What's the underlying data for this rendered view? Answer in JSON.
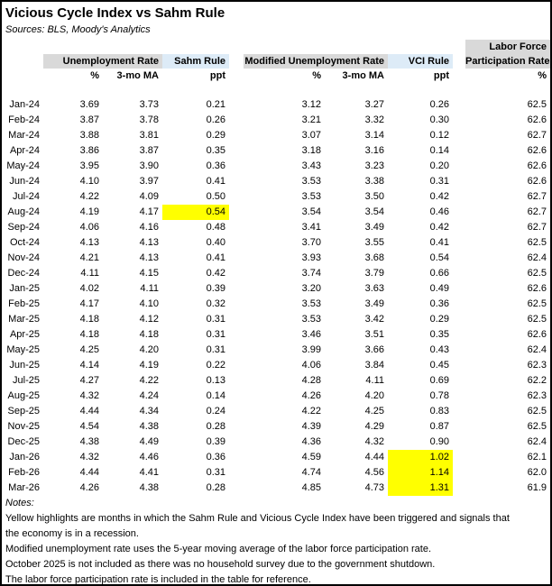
{
  "title": "Vicious Cycle Index vs Sahm Rule",
  "sources": "Sources: BLS, Moody's Analytics",
  "colors": {
    "header_gray": "#D9D9D9",
    "header_blue": "#DDEBF7",
    "highlight_yellow": "#FFFF00"
  },
  "table": {
    "group_headers": {
      "unemployment_rate": "Unemployment Rate",
      "sahm_rule": "Sahm Rule",
      "modified_unemployment_rate": "Modified Unemployment Rate",
      "vci_rule": "VCI Rule",
      "labor_force_line1": "Labor Force",
      "labor_force_line2": "Participation Rate"
    },
    "sub_headers": {
      "ur_pct": "%",
      "ur_ma": "3-mo MA",
      "sahm": "ppt",
      "mur_pct": "%",
      "mur_ma": "3-mo MA",
      "vci": "ppt",
      "lfpr": "%"
    },
    "rows": [
      {
        "month": "Jan-24",
        "ur_pct": "3.69",
        "ur_ma": "3.73",
        "sahm": "0.21",
        "mur_pct": "3.12",
        "mur_ma": "3.27",
        "vci": "0.26",
        "lfpr": "62.5",
        "sahm_hl": false,
        "vci_hl": false
      },
      {
        "month": "Feb-24",
        "ur_pct": "3.87",
        "ur_ma": "3.78",
        "sahm": "0.26",
        "mur_pct": "3.21",
        "mur_ma": "3.32",
        "vci": "0.30",
        "lfpr": "62.6",
        "sahm_hl": false,
        "vci_hl": false
      },
      {
        "month": "Mar-24",
        "ur_pct": "3.88",
        "ur_ma": "3.81",
        "sahm": "0.29",
        "mur_pct": "3.07",
        "mur_ma": "3.14",
        "vci": "0.12",
        "lfpr": "62.7",
        "sahm_hl": false,
        "vci_hl": false
      },
      {
        "month": "Apr-24",
        "ur_pct": "3.86",
        "ur_ma": "3.87",
        "sahm": "0.35",
        "mur_pct": "3.18",
        "mur_ma": "3.16",
        "vci": "0.14",
        "lfpr": "62.6",
        "sahm_hl": false,
        "vci_hl": false
      },
      {
        "month": "May-24",
        "ur_pct": "3.95",
        "ur_ma": "3.90",
        "sahm": "0.36",
        "mur_pct": "3.43",
        "mur_ma": "3.23",
        "vci": "0.20",
        "lfpr": "62.6",
        "sahm_hl": false,
        "vci_hl": false
      },
      {
        "month": "Jun-24",
        "ur_pct": "4.10",
        "ur_ma": "3.97",
        "sahm": "0.41",
        "mur_pct": "3.53",
        "mur_ma": "3.38",
        "vci": "0.31",
        "lfpr": "62.6",
        "sahm_hl": false,
        "vci_hl": false
      },
      {
        "month": "Jul-24",
        "ur_pct": "4.22",
        "ur_ma": "4.09",
        "sahm": "0.50",
        "mur_pct": "3.53",
        "mur_ma": "3.50",
        "vci": "0.42",
        "lfpr": "62.7",
        "sahm_hl": false,
        "vci_hl": false
      },
      {
        "month": "Aug-24",
        "ur_pct": "4.19",
        "ur_ma": "4.17",
        "sahm": "0.54",
        "mur_pct": "3.54",
        "mur_ma": "3.54",
        "vci": "0.46",
        "lfpr": "62.7",
        "sahm_hl": true,
        "vci_hl": false
      },
      {
        "month": "Sep-24",
        "ur_pct": "4.06",
        "ur_ma": "4.16",
        "sahm": "0.48",
        "mur_pct": "3.41",
        "mur_ma": "3.49",
        "vci": "0.42",
        "lfpr": "62.7",
        "sahm_hl": false,
        "vci_hl": false
      },
      {
        "month": "Oct-24",
        "ur_pct": "4.13",
        "ur_ma": "4.13",
        "sahm": "0.40",
        "mur_pct": "3.70",
        "mur_ma": "3.55",
        "vci": "0.41",
        "lfpr": "62.5",
        "sahm_hl": false,
        "vci_hl": false
      },
      {
        "month": "Nov-24",
        "ur_pct": "4.21",
        "ur_ma": "4.13",
        "sahm": "0.41",
        "mur_pct": "3.93",
        "mur_ma": "3.68",
        "vci": "0.54",
        "lfpr": "62.4",
        "sahm_hl": false,
        "vci_hl": false
      },
      {
        "month": "Dec-24",
        "ur_pct": "4.11",
        "ur_ma": "4.15",
        "sahm": "0.42",
        "mur_pct": "3.74",
        "mur_ma": "3.79",
        "vci": "0.66",
        "lfpr": "62.5",
        "sahm_hl": false,
        "vci_hl": false
      },
      {
        "month": "Jan-25",
        "ur_pct": "4.02",
        "ur_ma": "4.11",
        "sahm": "0.39",
        "mur_pct": "3.20",
        "mur_ma": "3.63",
        "vci": "0.49",
        "lfpr": "62.6",
        "sahm_hl": false,
        "vci_hl": false
      },
      {
        "month": "Feb-25",
        "ur_pct": "4.17",
        "ur_ma": "4.10",
        "sahm": "0.32",
        "mur_pct": "3.53",
        "mur_ma": "3.49",
        "vci": "0.36",
        "lfpr": "62.5",
        "sahm_hl": false,
        "vci_hl": false
      },
      {
        "month": "Mar-25",
        "ur_pct": "4.18",
        "ur_ma": "4.12",
        "sahm": "0.31",
        "mur_pct": "3.53",
        "mur_ma": "3.42",
        "vci": "0.29",
        "lfpr": "62.5",
        "sahm_hl": false,
        "vci_hl": false
      },
      {
        "month": "Apr-25",
        "ur_pct": "4.18",
        "ur_ma": "4.18",
        "sahm": "0.31",
        "mur_pct": "3.46",
        "mur_ma": "3.51",
        "vci": "0.35",
        "lfpr": "62.6",
        "sahm_hl": false,
        "vci_hl": false
      },
      {
        "month": "May-25",
        "ur_pct": "4.25",
        "ur_ma": "4.20",
        "sahm": "0.31",
        "mur_pct": "3.99",
        "mur_ma": "3.66",
        "vci": "0.43",
        "lfpr": "62.4",
        "sahm_hl": false,
        "vci_hl": false
      },
      {
        "month": "Jun-25",
        "ur_pct": "4.14",
        "ur_ma": "4.19",
        "sahm": "0.22",
        "mur_pct": "4.06",
        "mur_ma": "3.84",
        "vci": "0.45",
        "lfpr": "62.3",
        "sahm_hl": false,
        "vci_hl": false
      },
      {
        "month": "Jul-25",
        "ur_pct": "4.27",
        "ur_ma": "4.22",
        "sahm": "0.13",
        "mur_pct": "4.28",
        "mur_ma": "4.11",
        "vci": "0.69",
        "lfpr": "62.2",
        "sahm_hl": false,
        "vci_hl": false
      },
      {
        "month": "Aug-25",
        "ur_pct": "4.32",
        "ur_ma": "4.24",
        "sahm": "0.14",
        "mur_pct": "4.26",
        "mur_ma": "4.20",
        "vci": "0.78",
        "lfpr": "62.3",
        "sahm_hl": false,
        "vci_hl": false
      },
      {
        "month": "Sep-25",
        "ur_pct": "4.44",
        "ur_ma": "4.34",
        "sahm": "0.24",
        "mur_pct": "4.22",
        "mur_ma": "4.25",
        "vci": "0.83",
        "lfpr": "62.5",
        "sahm_hl": false,
        "vci_hl": false
      },
      {
        "month": "Nov-25",
        "ur_pct": "4.54",
        "ur_ma": "4.38",
        "sahm": "0.28",
        "mur_pct": "4.39",
        "mur_ma": "4.29",
        "vci": "0.87",
        "lfpr": "62.5",
        "sahm_hl": false,
        "vci_hl": false
      },
      {
        "month": "Dec-25",
        "ur_pct": "4.38",
        "ur_ma": "4.49",
        "sahm": "0.39",
        "mur_pct": "4.36",
        "mur_ma": "4.32",
        "vci": "0.90",
        "lfpr": "62.4",
        "sahm_hl": false,
        "vci_hl": false
      },
      {
        "month": "Jan-26",
        "ur_pct": "4.32",
        "ur_ma": "4.46",
        "sahm": "0.36",
        "mur_pct": "4.59",
        "mur_ma": "4.44",
        "vci": "1.02",
        "lfpr": "62.1",
        "sahm_hl": false,
        "vci_hl": true
      },
      {
        "month": "Feb-26",
        "ur_pct": "4.44",
        "ur_ma": "4.41",
        "sahm": "0.31",
        "mur_pct": "4.74",
        "mur_ma": "4.56",
        "vci": "1.14",
        "lfpr": "62.0",
        "sahm_hl": false,
        "vci_hl": true
      },
      {
        "month": "Mar-26",
        "ur_pct": "4.26",
        "ur_ma": "4.38",
        "sahm": "0.28",
        "mur_pct": "4.85",
        "mur_ma": "4.73",
        "vci": "1.31",
        "lfpr": "61.9",
        "sahm_hl": false,
        "vci_hl": true
      }
    ]
  },
  "notes": {
    "label": "Notes:",
    "lines": [
      "Yellow highlights are months in which the Sahm Rule and Vicious Cycle Index have been triggered and signals that",
      "the economy is in a recession.",
      "Modified unemployment rate uses the 5-year moving average of the labor force participation rate.",
      "October 2025 is not included as there was no household survey due to the government shutdown.",
      "The labor force participation rate is included in the table for reference."
    ]
  }
}
